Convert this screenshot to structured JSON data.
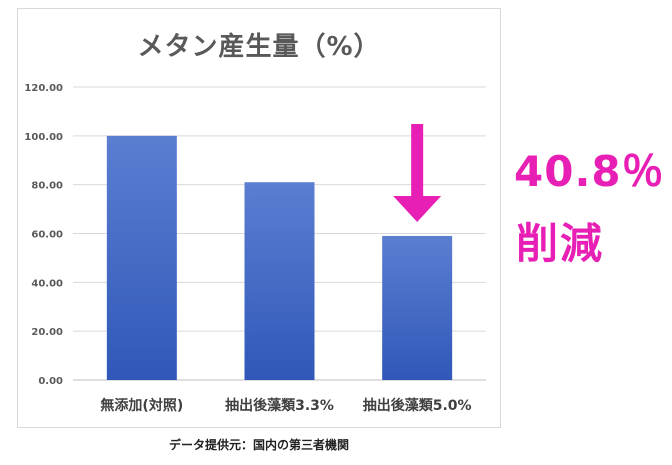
{
  "chart_data": {
    "type": "bar",
    "title": "メタン産生量（%）",
    "categories": [
      "無添加(対照)",
      "抽出後藻類3.3%",
      "抽出後藻類5.0%"
    ],
    "values": [
      100,
      81,
      59
    ],
    "ylim": [
      0,
      120
    ],
    "yticks": [
      "0.00",
      "20.00",
      "40.00",
      "60.00",
      "80.00",
      "100.00",
      "120.00"
    ],
    "grid": true,
    "legend": "none",
    "bar_color_top": "#5b7ed1",
    "bar_color_bottom": "#2f58b8"
  },
  "annotation": {
    "value": "40.8％",
    "word": "削減",
    "color": "#e81fb5",
    "arrow": "down-arrow-icon"
  },
  "source_note": "データ提供元：国内の第三者機関"
}
